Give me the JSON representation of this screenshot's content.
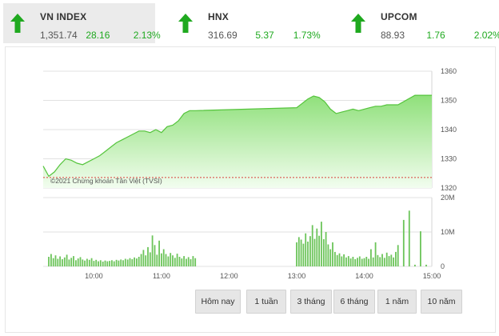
{
  "indices": [
    {
      "name": "VN INDEX",
      "value": "1,351.74",
      "change": "28.16",
      "percent": "2.13%",
      "direction": "up",
      "active": true
    },
    {
      "name": "HNX",
      "value": "316.69",
      "change": "5.37",
      "percent": "1.73%",
      "direction": "up",
      "active": false
    },
    {
      "name": "UPCOM",
      "value": "88.93",
      "change": "1.76",
      "percent": "2.02%",
      "direction": "up",
      "active": false
    }
  ],
  "colors": {
    "up": "#1fa91f",
    "area_top": "#8fe07a",
    "area_bottom": "#f2fdef",
    "line": "#55c43c",
    "volume": "#6cc45a",
    "reference": "#d9413b"
  },
  "copyright": "©2021 Chứng khoán Tân Việt (TVSI)",
  "timeframes": [
    "Hôm nay",
    "1 tuần",
    "3 tháng",
    "6 tháng",
    "1 năm",
    "10 năm"
  ],
  "chart_data": {
    "type": "area",
    "x_ticks": [
      "10:00",
      "11:00",
      "12:00",
      "13:00",
      "14:00",
      "15:00"
    ],
    "x_range": [
      "09:15",
      "15:00"
    ],
    "price": {
      "y_ticks": [
        "1360",
        "1350",
        "1340",
        "1330",
        "1320"
      ],
      "ylim": [
        1320,
        1360
      ],
      "reference": 1323.58,
      "points": [
        [
          "09:15",
          1327.5
        ],
        [
          "09:20",
          1324.0
        ],
        [
          "09:25",
          1325.5
        ],
        [
          "09:30",
          1328.0
        ],
        [
          "09:35",
          1330.0
        ],
        [
          "09:40",
          1329.5
        ],
        [
          "09:45",
          1328.5
        ],
        [
          "09:50",
          1328.0
        ],
        [
          "09:55",
          1329.0
        ],
        [
          "10:00",
          1330.0
        ],
        [
          "10:05",
          1331.0
        ],
        [
          "10:10",
          1332.5
        ],
        [
          "10:15",
          1334.0
        ],
        [
          "10:20",
          1335.5
        ],
        [
          "10:25",
          1336.5
        ],
        [
          "10:30",
          1337.5
        ],
        [
          "10:35",
          1338.5
        ],
        [
          "10:40",
          1339.5
        ],
        [
          "10:45",
          1339.5
        ],
        [
          "10:50",
          1339.0
        ],
        [
          "10:55",
          1340.0
        ],
        [
          "11:00",
          1339.0
        ],
        [
          "11:05",
          1341.0
        ],
        [
          "11:10",
          1341.5
        ],
        [
          "11:15",
          1343.0
        ],
        [
          "11:20",
          1345.5
        ],
        [
          "11:25",
          1346.5
        ],
        [
          "11:30",
          1346.5
        ],
        [
          "13:00",
          1347.5
        ],
        [
          "13:05",
          1349.0
        ],
        [
          "13:10",
          1350.5
        ],
        [
          "13:15",
          1351.5
        ],
        [
          "13:20",
          1351.0
        ],
        [
          "13:25",
          1349.5
        ],
        [
          "13:30",
          1347.0
        ],
        [
          "13:35",
          1345.5
        ],
        [
          "13:40",
          1346.0
        ],
        [
          "13:45",
          1346.5
        ],
        [
          "13:50",
          1347.0
        ],
        [
          "13:55",
          1346.5
        ],
        [
          "14:00",
          1347.0
        ],
        [
          "14:05",
          1347.5
        ],
        [
          "14:10",
          1348.0
        ],
        [
          "14:15",
          1348.0
        ],
        [
          "14:20",
          1348.5
        ],
        [
          "14:25",
          1348.5
        ],
        [
          "14:30",
          1348.5
        ],
        [
          "14:45",
          1351.74
        ],
        [
          "14:50",
          1351.74
        ],
        [
          "15:00",
          1351.74
        ]
      ]
    },
    "volume": {
      "y_ticks": [
        "20M",
        "10M",
        "0"
      ],
      "ylim": [
        0,
        20
      ],
      "unit": "M",
      "points": [
        [
          "09:20",
          2.8
        ],
        [
          "09:22",
          3.6
        ],
        [
          "09:24",
          2.4
        ],
        [
          "09:26",
          3.2
        ],
        [
          "09:28",
          2.2
        ],
        [
          "09:30",
          2.9
        ],
        [
          "09:32",
          2.1
        ],
        [
          "09:34",
          2.6
        ],
        [
          "09:36",
          3.4
        ],
        [
          "09:38",
          2.0
        ],
        [
          "09:40",
          2.5
        ],
        [
          "09:42",
          3.0
        ],
        [
          "09:44",
          1.8
        ],
        [
          "09:46",
          2.3
        ],
        [
          "09:48",
          2.7
        ],
        [
          "09:50",
          2.0
        ],
        [
          "09:52",
          1.7
        ],
        [
          "09:54",
          2.2
        ],
        [
          "09:56",
          1.9
        ],
        [
          "09:58",
          2.4
        ],
        [
          "10:00",
          1.6
        ],
        [
          "10:02",
          1.9
        ],
        [
          "10:04",
          1.5
        ],
        [
          "10:06",
          1.8
        ],
        [
          "10:08",
          1.4
        ],
        [
          "10:10",
          1.7
        ],
        [
          "10:12",
          1.5
        ],
        [
          "10:14",
          1.6
        ],
        [
          "10:16",
          1.8
        ],
        [
          "10:18",
          1.5
        ],
        [
          "10:20",
          1.9
        ],
        [
          "10:22",
          1.7
        ],
        [
          "10:24",
          2.0
        ],
        [
          "10:26",
          1.8
        ],
        [
          "10:28",
          2.2
        ],
        [
          "10:30",
          2.0
        ],
        [
          "10:32",
          2.4
        ],
        [
          "10:34",
          2.1
        ],
        [
          "10:36",
          2.6
        ],
        [
          "10:38",
          2.3
        ],
        [
          "10:40",
          2.8
        ],
        [
          "10:42",
          3.6
        ],
        [
          "10:44",
          4.8
        ],
        [
          "10:46",
          3.2
        ],
        [
          "10:48",
          5.6
        ],
        [
          "10:50",
          4.1
        ],
        [
          "10:52",
          9.0
        ],
        [
          "10:54",
          6.2
        ],
        [
          "10:56",
          3.4
        ],
        [
          "10:58",
          7.5
        ],
        [
          "11:00",
          3.8
        ],
        [
          "11:02",
          5.0
        ],
        [
          "11:04",
          3.6
        ],
        [
          "11:06",
          2.9
        ],
        [
          "11:08",
          3.9
        ],
        [
          "11:10",
          3.2
        ],
        [
          "11:12",
          2.5
        ],
        [
          "11:14",
          3.7
        ],
        [
          "11:16",
          2.8
        ],
        [
          "11:18",
          2.3
        ],
        [
          "11:20",
          3.0
        ],
        [
          "11:22",
          2.2
        ],
        [
          "11:24",
          2.7
        ],
        [
          "11:26",
          2.1
        ],
        [
          "11:28",
          3.0
        ],
        [
          "11:30",
          2.4
        ],
        [
          "13:00",
          7.0
        ],
        [
          "13:02",
          8.5
        ],
        [
          "13:04",
          7.8
        ],
        [
          "13:06",
          6.6
        ],
        [
          "13:08",
          9.6
        ],
        [
          "13:10",
          7.2
        ],
        [
          "13:12",
          8.8
        ],
        [
          "13:14",
          12.0
        ],
        [
          "13:16",
          8.0
        ],
        [
          "13:18",
          11.0
        ],
        [
          "13:20",
          8.9
        ],
        [
          "13:22",
          13.0
        ],
        [
          "13:24",
          7.9
        ],
        [
          "13:26",
          10.0
        ],
        [
          "13:28",
          6.4
        ],
        [
          "13:30",
          5.0
        ],
        [
          "13:32",
          7.0
        ],
        [
          "13:34",
          4.2
        ],
        [
          "13:36",
          3.3
        ],
        [
          "13:38",
          3.8
        ],
        [
          "13:40",
          2.9
        ],
        [
          "13:42",
          3.5
        ],
        [
          "13:44",
          2.6
        ],
        [
          "13:46",
          3.0
        ],
        [
          "13:48",
          2.3
        ],
        [
          "13:50",
          2.8
        ],
        [
          "13:52",
          2.1
        ],
        [
          "13:54",
          2.5
        ],
        [
          "13:56",
          2.9
        ],
        [
          "13:58",
          2.2
        ],
        [
          "14:00",
          2.4
        ],
        [
          "14:02",
          2.8
        ],
        [
          "14:04",
          2.2
        ],
        [
          "14:06",
          5.0
        ],
        [
          "14:08",
          2.6
        ],
        [
          "14:10",
          7.0
        ],
        [
          "14:12",
          3.3
        ],
        [
          "14:14",
          2.7
        ],
        [
          "14:16",
          3.6
        ],
        [
          "14:18",
          2.5
        ],
        [
          "14:20",
          4.0
        ],
        [
          "14:22",
          3.0
        ],
        [
          "14:24",
          3.4
        ],
        [
          "14:26",
          2.6
        ],
        [
          "14:28",
          4.2
        ],
        [
          "14:30",
          6.2
        ],
        [
          "14:35",
          13.5
        ],
        [
          "14:40",
          16.2
        ],
        [
          "14:45",
          0.5
        ],
        [
          "14:50",
          10.2
        ],
        [
          "14:55",
          0.5
        ]
      ]
    },
    "grid": true
  }
}
